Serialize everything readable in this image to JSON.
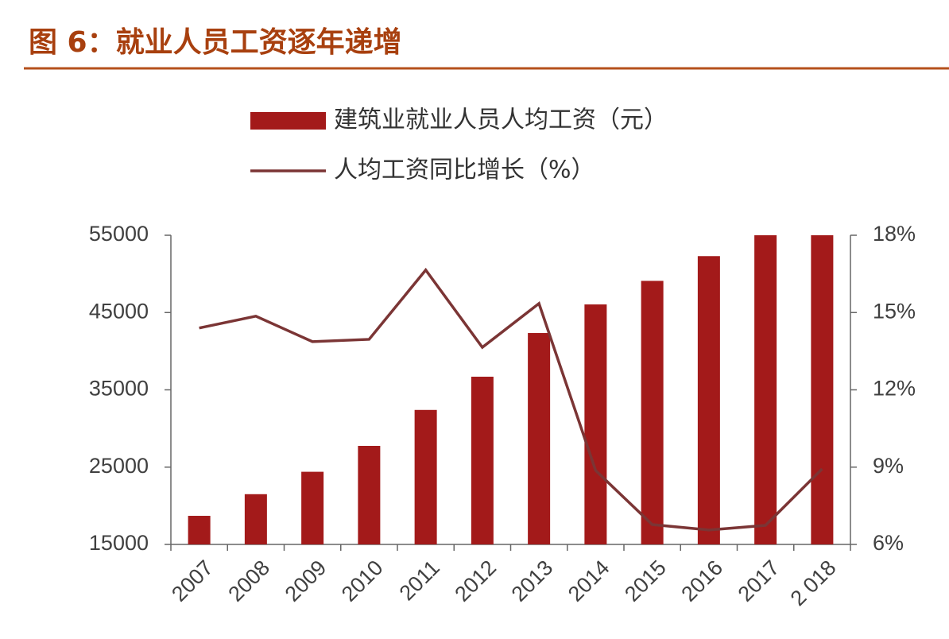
{
  "chart_data": {
    "type": "bar_line",
    "title": "图 6：就业人员工资逐年递增",
    "categories": [
      "2007",
      "2008",
      "2009",
      "2010",
      "2011",
      "2012",
      "2013",
      "2014",
      "2015",
      "2016",
      "2017",
      "2 018"
    ],
    "series": [
      {
        "name": "建筑业就业人员人均工资（元）",
        "color": "#a31a1a",
        "type": "bar",
        "values": [
          18700,
          21500,
          24400,
          27750,
          32400,
          36700,
          42350,
          46050,
          49100,
          52300,
          55000,
          55000
        ]
      },
      {
        "name": "人均工资同比增长（%）",
        "color": "#7b3535",
        "type": "line",
        "axis": "y2",
        "values": [
          14.4,
          14.86,
          13.87,
          13.96,
          16.65,
          13.65,
          15.35,
          8.87,
          6.77,
          6.56,
          6.74,
          8.93
        ]
      }
    ],
    "ylim": [
      15000,
      55000
    ],
    "yticks": [
      15000,
      25000,
      35000,
      45000,
      55000
    ],
    "y2lim": [
      6,
      18
    ],
    "y2ticks": [
      {
        "value": 6,
        "label": "6%"
      },
      {
        "value": 9,
        "label": "9%"
      },
      {
        "value": 12,
        "label": "12%"
      },
      {
        "value": 15,
        "label": "15%"
      },
      {
        "value": 18,
        "label": "18%"
      }
    ],
    "legend": "top",
    "grid": false
  }
}
